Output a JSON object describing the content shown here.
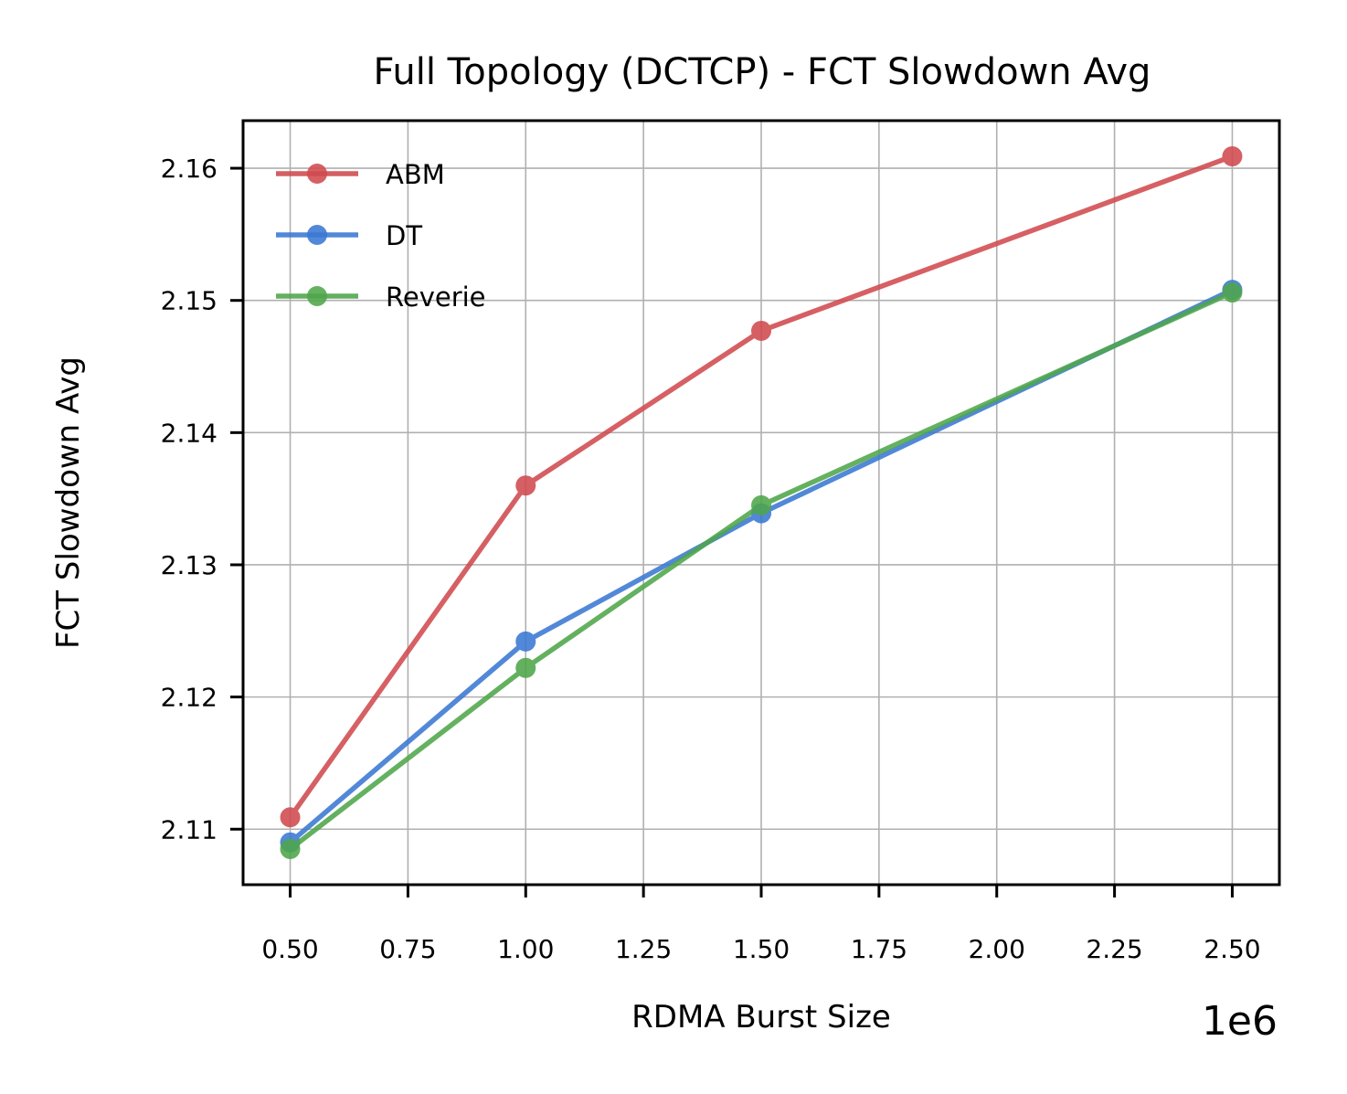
{
  "chart_data": {
    "type": "line",
    "title": "Full Topology (DCTCP) - FCT Slowdown Avg",
    "xlabel": "RDMA Burst Size",
    "ylabel": "FCT Slowdown Avg",
    "x_offset_label": "1e6",
    "xlim": [
      0.4,
      2.6
    ],
    "ylim": [
      2.1058,
      2.1636
    ],
    "x_ticks": [
      0.5,
      0.75,
      1.0,
      1.25,
      1.5,
      1.75,
      2.0,
      2.25,
      2.5
    ],
    "x_tick_labels": [
      "0.50",
      "0.75",
      "1.00",
      "1.25",
      "1.50",
      "1.75",
      "2.00",
      "2.25",
      "2.50"
    ],
    "y_ticks": [
      2.11,
      2.12,
      2.13,
      2.14,
      2.15,
      2.16
    ],
    "y_tick_labels": [
      "2.11",
      "2.12",
      "2.13",
      "2.14",
      "2.15",
      "2.16"
    ],
    "grid": true,
    "legend_position": "top-left",
    "x": [
      0.5,
      1.0,
      1.5,
      2.5
    ],
    "series": [
      {
        "name": "ABM",
        "color": "#d04a4e",
        "values": [
          2.1109,
          2.136,
          2.1477,
          2.1609
        ]
      },
      {
        "name": "DT",
        "color": "#3a78d3",
        "values": [
          2.109,
          2.1242,
          2.1339,
          2.1508
        ]
      },
      {
        "name": "Reverie",
        "color": "#4ea64a",
        "values": [
          2.1085,
          2.1222,
          2.1345,
          2.1506
        ]
      }
    ]
  }
}
